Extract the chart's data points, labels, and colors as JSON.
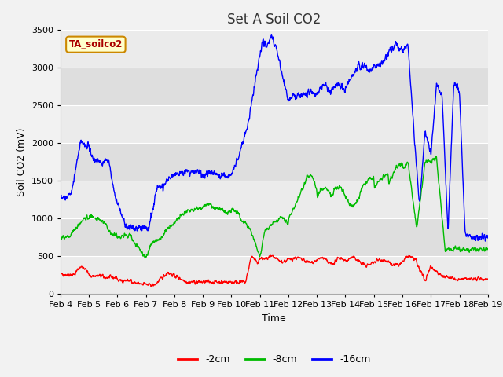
{
  "title": "Set A Soil CO2",
  "ylabel": "Soil CO2 (mV)",
  "xlabel": "Time",
  "legend_label": "TA_soilco2",
  "series_labels": [
    "-2cm",
    "-8cm",
    "-16cm"
  ],
  "series_colors": [
    "#ff0000",
    "#00bb00",
    "#0000ff"
  ],
  "xlim_days": [
    4,
    19
  ],
  "ylim": [
    0,
    3500
  ],
  "yticks": [
    0,
    500,
    1000,
    1500,
    2000,
    2500,
    3000,
    3500
  ],
  "xtick_labels": [
    "Feb 4",
    "Feb 5",
    "Feb 6",
    "Feb 7",
    "Feb 8",
    "Feb 9",
    "Feb 10",
    "Feb 11",
    "Feb 12",
    "Feb 13",
    "Feb 14",
    "Feb 15",
    "Feb 16",
    "Feb 17",
    "Feb 18",
    "Feb 19"
  ],
  "plot_bg_color": "#ebebeb",
  "band_color_light": "#ebebeb",
  "band_color_dark": "#dedede",
  "title_fontsize": 12,
  "axis_label_fontsize": 9,
  "tick_fontsize": 8,
  "legend_box_color": "#ffffcc",
  "legend_box_edge": "#cc8800",
  "legend_text_color": "#aa0000"
}
